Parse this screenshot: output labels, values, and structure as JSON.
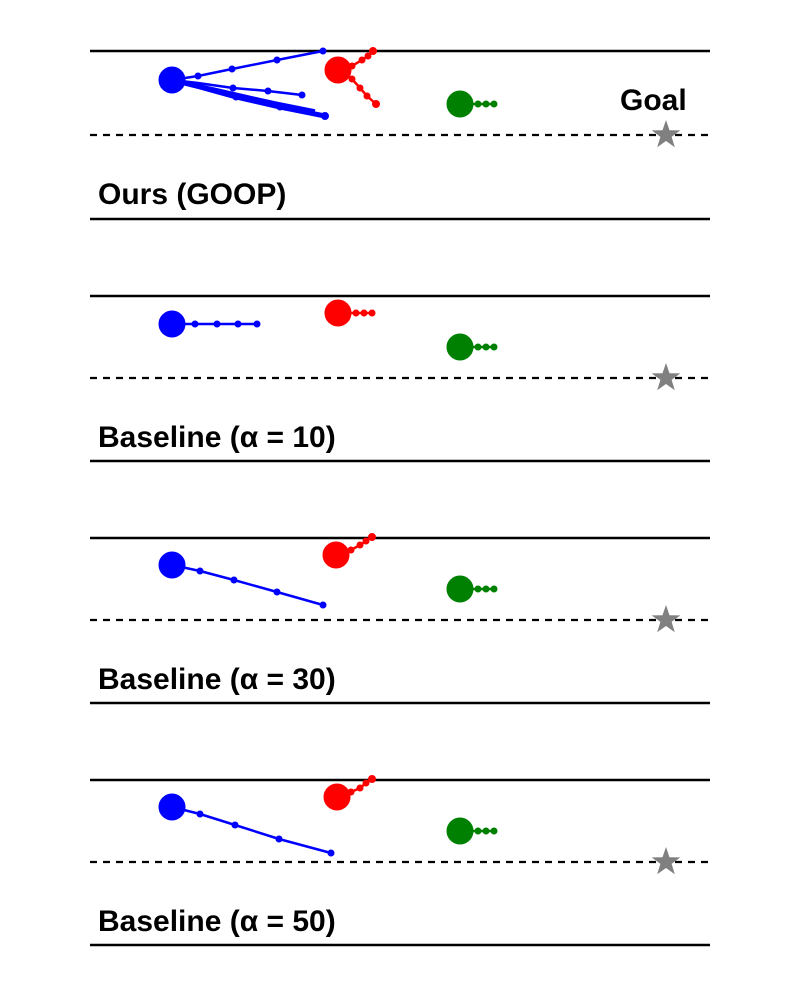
{
  "colors": {
    "agent_1": "#0000ff",
    "agent_2": "#ff0000",
    "agent_3": "#008000",
    "goal": "#808080",
    "lines": "#000000"
  },
  "goal_label": "Goal",
  "panels": [
    {
      "label": "Ours (GOOP)",
      "goal_label_visible": true
    },
    {
      "label": "Baseline (α = 10)",
      "goal_label_visible": false
    },
    {
      "label": "Baseline (α = 30)",
      "goal_label_visible": false
    },
    {
      "label": "Baseline (α = 50)",
      "goal_label_visible": false
    }
  ]
}
